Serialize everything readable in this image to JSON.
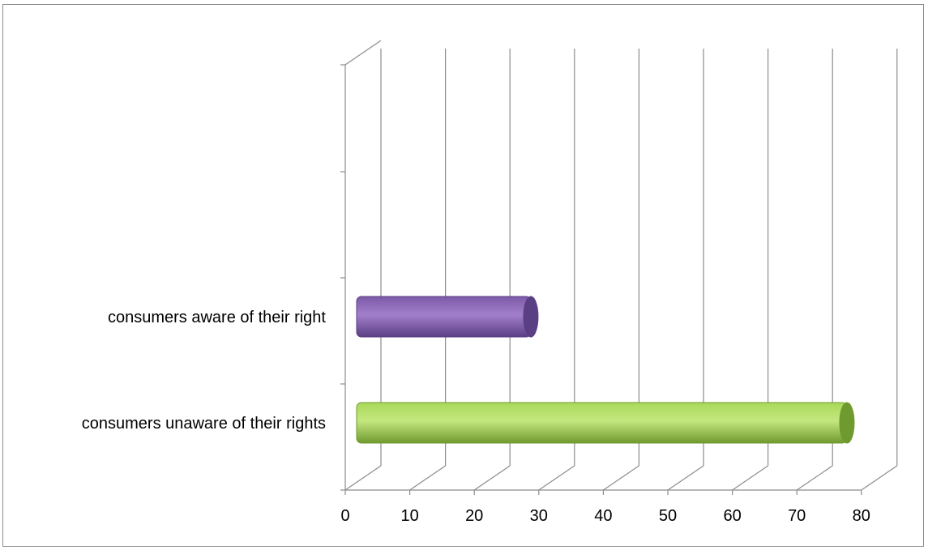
{
  "chart_data": {
    "type": "bar",
    "orientation": "horizontal",
    "style": "3d-cylinder",
    "categories": [
      "consumers unaware of their rights",
      "consumers aware of their right"
    ],
    "values": [
      76,
      27
    ],
    "bar_colors": [
      "#9ccc4f",
      "#8c63b8"
    ],
    "xlim": [
      0,
      80
    ],
    "x_ticks": [
      "0",
      "10",
      "20",
      "30",
      "40",
      "50",
      "60",
      "70",
      "80"
    ],
    "grid": true,
    "legend": "none",
    "title": "",
    "xlabel": "",
    "ylabel": ""
  }
}
